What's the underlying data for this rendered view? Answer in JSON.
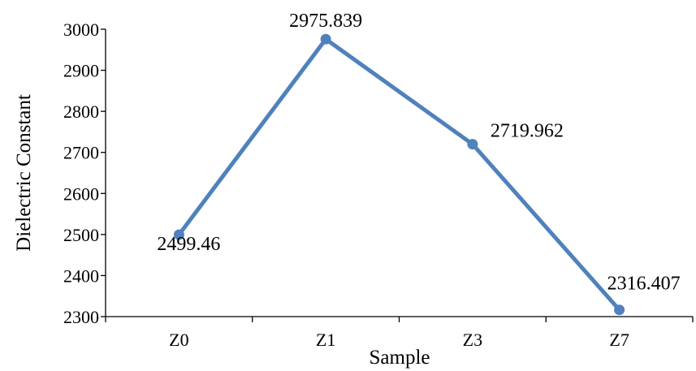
{
  "chart_data": {
    "type": "line",
    "title": "",
    "xlabel": "Sample",
    "ylabel": "Dielectric Constant",
    "categories": [
      "Z0",
      "Z1",
      "Z3",
      "Z7"
    ],
    "series": [
      {
        "values": [
          2499.46,
          2975.839,
          2719.962,
          2316.407
        ],
        "data_labels": [
          "2499.46",
          "2975.839",
          "2719.962",
          "2316.407"
        ],
        "color": "#4f81bd"
      }
    ],
    "ylim": [
      2300,
      3000
    ],
    "yticks": [
      2300,
      2400,
      2500,
      2600,
      2700,
      2800,
      2900,
      3000
    ],
    "ytick_labels": [
      "2300",
      "2400",
      "2500",
      "2600",
      "2700",
      "2800",
      "2900",
      "3000"
    ],
    "grid": false,
    "legend": "none",
    "axis_color": "#000000"
  }
}
